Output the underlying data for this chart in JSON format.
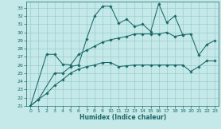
{
  "bg_color": "#c5e8e8",
  "line_color": "#1a6868",
  "xlabel": "Humidex (Indice chaleur)",
  "xlim": [
    -0.5,
    23.5
  ],
  "ylim": [
    21,
    33.8
  ],
  "yticks": [
    21,
    22,
    23,
    24,
    25,
    26,
    27,
    28,
    29,
    30,
    31,
    32,
    33
  ],
  "xticks": [
    0,
    1,
    2,
    3,
    4,
    5,
    6,
    7,
    8,
    9,
    10,
    11,
    12,
    13,
    14,
    15,
    16,
    17,
    18,
    19,
    20,
    21,
    22,
    23
  ],
  "line1_x": [
    0,
    1,
    3,
    4,
    5,
    6,
    7,
    8,
    9,
    10,
    11,
    12,
    13,
    14,
    15,
    16,
    17,
    18,
    19
  ],
  "line1_y": [
    21.0,
    21.8,
    25.0,
    25.0,
    25.8,
    26.0,
    29.2,
    32.0,
    33.2,
    33.2,
    31.1,
    31.6,
    30.7,
    31.0,
    30.1,
    33.5,
    31.2,
    32.0,
    29.7
  ],
  "line2_x": [
    0,
    2,
    3,
    4,
    5,
    6,
    7,
    8,
    9,
    10,
    11,
    12,
    13,
    14,
    15,
    16,
    17,
    18,
    19,
    20,
    21,
    22,
    23
  ],
  "line2_y": [
    21.0,
    27.3,
    27.3,
    26.1,
    26.0,
    27.3,
    27.8,
    28.3,
    28.8,
    29.1,
    29.3,
    29.5,
    29.8,
    29.8,
    29.8,
    29.8,
    30.0,
    29.5,
    29.7,
    29.8,
    27.2,
    28.5,
    29.0
  ],
  "line3_x": [
    0,
    1,
    2,
    3,
    4,
    5,
    6,
    7,
    8,
    9,
    10,
    11,
    12,
    13,
    14,
    15,
    16,
    17,
    18,
    19,
    20,
    21,
    22,
    23
  ],
  "line3_y": [
    21.0,
    21.8,
    22.5,
    23.5,
    24.2,
    25.0,
    25.5,
    25.8,
    26.0,
    26.3,
    26.3,
    25.8,
    25.9,
    26.0,
    26.0,
    26.0,
    26.0,
    26.0,
    26.0,
    26.0,
    25.2,
    25.8,
    26.5,
    26.5
  ]
}
